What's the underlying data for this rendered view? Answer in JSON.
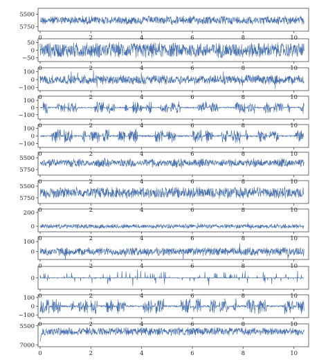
{
  "figure": {
    "line_color": "#4a72b0",
    "frame_color": "#444444"
  },
  "chart_data": [
    {
      "type": "line",
      "xlim": [
        0,
        10.5
      ],
      "x_ticks": [
        "0",
        "2",
        "4",
        "6",
        "8",
        "10"
      ],
      "y_ticks": [
        "5500",
        "5750"
      ],
      "y_tick_values": [
        5500,
        5750
      ],
      "ylim": [
        5840,
        5380
      ],
      "inverted_y": true,
      "series": [
        {
          "x_range": [
            0,
            10.4
          ],
          "mean": 5620,
          "amplitude": 95,
          "pattern": "dense noise"
        }
      ]
    },
    {
      "type": "line",
      "xlim": [
        0,
        10.5
      ],
      "x_ticks": [
        "0",
        "2",
        "4",
        "6",
        "8",
        "10"
      ],
      "y_ticks": [
        "50",
        "0",
        "−50"
      ],
      "y_tick_values": [
        50,
        0,
        -50
      ],
      "ylim": [
        -75,
        75
      ],
      "series": [
        {
          "x_range": [
            0,
            10.4
          ],
          "mean": 0,
          "amplitude": 55,
          "pattern": "dense noise"
        }
      ]
    },
    {
      "type": "line",
      "xlim": [
        0,
        10.5
      ],
      "x_ticks": [
        "0",
        "2",
        "4",
        "6",
        "8",
        "10"
      ],
      "y_ticks": [
        "100",
        "0",
        "−100"
      ],
      "y_tick_values": [
        100,
        0,
        -100
      ],
      "ylim": [
        -140,
        150
      ],
      "series": [
        {
          "x_range": [
            0,
            10.4
          ],
          "mean": 0,
          "amplitude": 65,
          "pattern": "dense noise with spikes"
        }
      ]
    },
    {
      "type": "line",
      "xlim": [
        0,
        10.5
      ],
      "x_ticks": [
        "0",
        "2",
        "4",
        "6",
        "8",
        "10"
      ],
      "y_ticks": [
        "100",
        "0",
        "−100"
      ],
      "y_tick_values": [
        100,
        0,
        -100
      ],
      "ylim": [
        -160,
        160
      ],
      "series": [
        {
          "x_range": [
            0,
            10.4
          ],
          "mean": 0,
          "amplitude": 90,
          "pattern": "bursts"
        }
      ]
    },
    {
      "type": "line",
      "xlim": [
        0,
        10.5
      ],
      "x_ticks": [
        "0",
        "2",
        "4",
        "6",
        "8",
        "10"
      ],
      "y_ticks": [
        "100",
        "0",
        "−100"
      ],
      "y_tick_values": [
        100,
        0,
        -100
      ],
      "ylim": [
        -150,
        150
      ],
      "series": [
        {
          "x_range": [
            0,
            10.4
          ],
          "mean": 0,
          "amplitude": 100,
          "pattern": "bursts"
        }
      ]
    },
    {
      "type": "line",
      "xlim": [
        0,
        10.5
      ],
      "x_ticks": [
        "0",
        "2",
        "4",
        "6",
        "8",
        "10"
      ],
      "y_ticks": [
        "5500",
        "5750"
      ],
      "y_tick_values": [
        5500,
        5750
      ],
      "ylim": [
        5870,
        5380
      ],
      "inverted_y": true,
      "series": [
        {
          "x_range": [
            0,
            10.4
          ],
          "mean": 5610,
          "amplitude": 110,
          "pattern": "modulated noise"
        }
      ]
    },
    {
      "type": "line",
      "xlim": [
        0,
        10.5
      ],
      "x_ticks": [
        "0",
        "2",
        "4",
        "6",
        "8",
        "10"
      ],
      "y_ticks": [
        "5500",
        "5750"
      ],
      "y_tick_values": [
        5500,
        5750
      ],
      "ylim": [
        5870,
        5380
      ],
      "inverted_y": true,
      "series": [
        {
          "x_range": [
            0,
            10.4
          ],
          "mean": 5640,
          "amplitude": 130,
          "pattern": "dense noise"
        }
      ]
    },
    {
      "type": "line",
      "xlim": [
        0,
        10.5
      ],
      "x_ticks": [
        "0",
        "2",
        "4",
        "6",
        "8",
        "10"
      ],
      "y_ticks": [
        "200",
        "0"
      ],
      "y_tick_values": [
        200,
        0
      ],
      "ylim": [
        -80,
        250
      ],
      "series": [
        {
          "x_range": [
            0,
            10.4
          ],
          "mean": 0,
          "amplitude": 35,
          "pattern": "dense noise with spikes"
        }
      ]
    },
    {
      "type": "line",
      "xlim": [
        0,
        10.5
      ],
      "x_ticks": [
        "0",
        "2",
        "4",
        "6",
        "8",
        "10"
      ],
      "y_ticks": [
        "100",
        "0"
      ],
      "y_tick_values": [
        100,
        0
      ],
      "ylim": [
        -80,
        150
      ],
      "series": [
        {
          "x_range": [
            0,
            10.4
          ],
          "mean": 0,
          "amplitude": 45,
          "pattern": "dense noise with spikes"
        }
      ]
    },
    {
      "type": "line",
      "xlim": [
        0,
        10.5
      ],
      "x_ticks": [
        "0",
        "2",
        "4",
        "6",
        "8",
        "10"
      ],
      "y_ticks": [
        "0"
      ],
      "y_tick_values": [
        0
      ],
      "ylim": [
        -130,
        130
      ],
      "series": [
        {
          "x_range": [
            0,
            10.4
          ],
          "mean": 0,
          "amplitude": 100,
          "pattern": "sparse spikes"
        }
      ]
    },
    {
      "type": "line",
      "xlim": [
        0,
        10.5
      ],
      "x_ticks": [
        "0",
        "2",
        "4",
        "6",
        "8",
        "10"
      ],
      "y_ticks": [
        "100",
        "0",
        "−100"
      ],
      "y_tick_values": [
        100,
        0,
        -100
      ],
      "ylim": [
        -130,
        130
      ],
      "series": [
        {
          "x_range": [
            0,
            10.4
          ],
          "mean": 0,
          "amplitude": 95,
          "pattern": "bursts"
        }
      ]
    },
    {
      "type": "line",
      "xlim": [
        0,
        10.5
      ],
      "x_ticks": [
        "0",
        "2",
        "4",
        "6",
        "8",
        "10"
      ],
      "y_ticks": [
        "5500",
        "7000"
      ],
      "y_tick_values": [
        5500,
        7000
      ],
      "ylim": [
        7150,
        5350
      ],
      "inverted_y": true,
      "series": [
        {
          "x_range": [
            0,
            10.4
          ],
          "mean": 5950,
          "amplitude": 350,
          "pattern": "dense noise with initial dip"
        }
      ]
    }
  ]
}
